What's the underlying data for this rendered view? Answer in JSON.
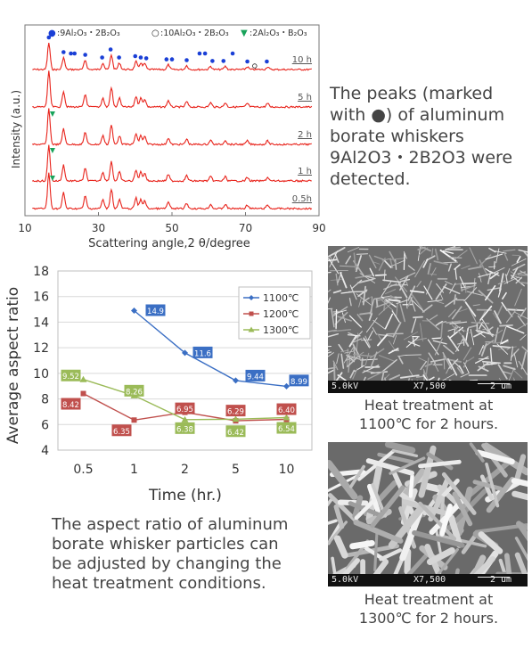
{
  "xrd": {
    "xlabel": "Scattering angle,2 θ/degree",
    "ylabel": "Intensity (a.u.)",
    "xticks": [
      "10",
      "30",
      "50",
      "70",
      "90"
    ],
    "xlim": [
      10,
      90
    ],
    "legend": [
      {
        "symbol": "●",
        "label": ":9Al₂O₃・2B₂O₃",
        "color": "#1a3fd6"
      },
      {
        "symbol": "○",
        "label": ":10Al₂O₃・2B₂O₃",
        "color": "#222222"
      },
      {
        "symbol": "▼",
        "label": ":2Al₂O₃・B₂O₃",
        "color": "#18a35a"
      }
    ],
    "traces": [
      "10 h",
      "5 h",
      "2 h",
      "1 h",
      "0.5h"
    ],
    "line_color": "#e8231b",
    "peaks": [
      16.5,
      20.5,
      26.4,
      31.2,
      33.5,
      35.7,
      40.2,
      41.5,
      42.6,
      49.0,
      54.0,
      60.5,
      64.5,
      70.5,
      76.0
    ],
    "filled_markers": [
      16.5,
      20.5,
      22.5,
      23.5,
      26.4,
      31.0,
      33.3,
      35.6,
      40.0,
      41.5,
      43.0,
      48.5,
      50.0,
      54.0,
      57.5,
      59.0,
      61.0,
      64.0,
      66.5,
      70.5,
      75.8
    ],
    "open_markers": [
      72.5
    ],
    "triangle_traces": [
      "2 h",
      "1 h",
      "0.5h"
    ],
    "triangle_x": 17.5
  },
  "description_text": [
    "The peaks (marked",
    "with ●) of aluminum",
    "borate whiskers",
    "9Al2O3・2B2O3 were",
    "detected."
  ],
  "chart_data": {
    "type": "line",
    "categories": [
      "0.5",
      "1",
      "2",
      "5",
      "10"
    ],
    "xlabel": "Time (hr.)",
    "ylabel": "Average aspect ratio",
    "ylim": [
      4,
      18
    ],
    "yticks": [
      4,
      6,
      8,
      10,
      12,
      14,
      16,
      18
    ],
    "series": [
      {
        "name": "1100℃",
        "color": "#3b6fc4",
        "marker": "diamond",
        "values": [
          null,
          14.9,
          11.6,
          9.44,
          8.99
        ]
      },
      {
        "name": "1200℃",
        "color": "#c0504d",
        "marker": "square",
        "values": [
          8.42,
          6.35,
          6.95,
          6.29,
          6.4
        ]
      },
      {
        "name": "1300℃",
        "color": "#9bbb59",
        "marker": "triangle",
        "values": [
          9.52,
          8.26,
          6.38,
          6.42,
          6.54
        ]
      }
    ],
    "data_labels": [
      {
        "series": 0,
        "i": 1,
        "text": "14.9"
      },
      {
        "series": 0,
        "i": 2,
        "text": "11.6"
      },
      {
        "series": 0,
        "i": 3,
        "text": "9.44"
      },
      {
        "series": 0,
        "i": 4,
        "text": "8.99"
      },
      {
        "series": 1,
        "i": 0,
        "text": "8.42"
      },
      {
        "series": 1,
        "i": 1,
        "text": "6.35"
      },
      {
        "series": 1,
        "i": 2,
        "text": "6.95"
      },
      {
        "series": 1,
        "i": 3,
        "text": "6.29"
      },
      {
        "series": 1,
        "i": 4,
        "text": "6.40"
      },
      {
        "series": 2,
        "i": 0,
        "text": "9.52"
      },
      {
        "series": 2,
        "i": 1,
        "text": "8.26"
      },
      {
        "series": 2,
        "i": 2,
        "text": "6.38"
      },
      {
        "series": 2,
        "i": 3,
        "text": "6.42"
      },
      {
        "series": 2,
        "i": 4,
        "text": "6.54"
      }
    ],
    "legend_position": "top-right",
    "grid": "horizontal"
  },
  "aspect_text": [
    "The aspect ratio of aluminum",
    "borate whisker particles can",
    "be adjusted by changing the",
    "heat treatment conditions."
  ],
  "sem1": {
    "kv": "5.0kV",
    "mag": "X7,500",
    "scale": "2 um",
    "caption": [
      "Heat treatment at",
      "1100℃ for 2 hours."
    ]
  },
  "sem2": {
    "kv": "5.0kV",
    "mag": "X7,500",
    "scale": "2 um",
    "caption": [
      "Heat treatment at",
      "1300℃ for 2 hours."
    ]
  }
}
